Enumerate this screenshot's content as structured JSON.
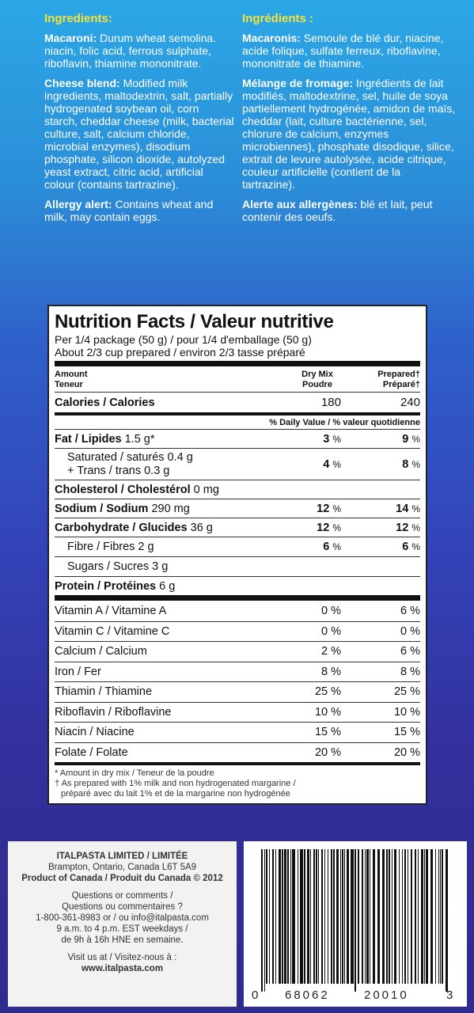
{
  "ingredients": {
    "en": {
      "title": "Ingredients:",
      "paragraphs": [
        {
          "label": "Macaroni:",
          "text": " Durum wheat semolina. niacin, folic acid, ferrous sulphate, riboflavin, thiamine mononitrate."
        },
        {
          "label": "Cheese blend:",
          "text": " Modified milk ingredients, maltodextrin, salt, partially hydrogenated soybean oil, corn starch, cheddar cheese (milk, bacterial culture, salt, calcium chloride, microbial enzymes), disodium phosphate, silicon dioxide, autolyzed yeast extract, citric acid, artificial colour (contains tartrazine)."
        },
        {
          "label": "Allergy alert:",
          "text": " Contains wheat and milk, may contain eggs."
        }
      ]
    },
    "fr": {
      "title": "Ingrédients :",
      "paragraphs": [
        {
          "label": "Macaronis:",
          "text": " Semoule de blé dur, niacine, acide folique, sulfate ferreux, riboflavine, mononitrate de thiamine."
        },
        {
          "label": "Mélange de fromage:",
          "text": " Ingrédients de lait modifiés, maltodextrine, sel, huile de soya partiellement hydrogénée, amidon de maïs, cheddar (lait, culture bactérienne, sel, chlorure de calcium, enzymes microbiennes), phosphate disodique, silice, extrait de levure autolysée, acide citrique, couleur artificielle (contient de la tartrazine)."
        },
        {
          "label": "Alerte aux allergènes:",
          "text": " blé et lait, peut contenir des oeufs."
        }
      ]
    }
  },
  "nutrition": {
    "title": "Nutrition Facts / Valeur nutritive",
    "serving1": "Per 1/4 package (50 g) / pour 1/4 d'emballage (50 g)",
    "serving2": "About 2/3 cup prepared / environ 2/3 tasse préparé",
    "hdr_amount": "Amount",
    "hdr_teneur": "Teneur",
    "hdr_dry1": "Dry Mix",
    "hdr_dry2": "Poudre",
    "hdr_prep1": "Prepared†",
    "hdr_prep2": "Préparé†",
    "calories_label": "Calories / Calories",
    "calories_dry": "180",
    "calories_prep": "240",
    "dv_label": "% Daily Value / % valeur quotidienne",
    "fat_label": "Fat / Lipides",
    "fat_amt": " 1.5 g*",
    "fat_dry": "3",
    "fat_prep": "9",
    "sat1": "Saturated / saturés 0.4 g",
    "sat2": "+ Trans / trans 0.3 g",
    "sat_dry": "4",
    "sat_prep": "8",
    "chol_label": "Cholesterol / Cholestérol",
    "chol_amt": " 0 mg",
    "sodium_label": "Sodium / Sodium",
    "sodium_amt": " 290 mg",
    "sodium_dry": "12",
    "sodium_prep": "14",
    "carb_label": "Carbohydrate / Glucides",
    "carb_amt": " 36 g",
    "carb_dry": "12",
    "carb_prep": "12",
    "fibre_label": "Fibre / Fibres 2 g",
    "fibre_dry": "6",
    "fibre_prep": "6",
    "sugars_label": "Sugars / Sucres 3 g",
    "protein_label": "Protein / Protéines",
    "protein_amt": " 6 g",
    "pct": "%",
    "vitamins": [
      {
        "label": "Vitamin A / Vitamine A",
        "dry": "0 %",
        "prep": "6 %"
      },
      {
        "label": "Vitamin C / Vitamine C",
        "dry": "0 %",
        "prep": "0 %"
      },
      {
        "label": "Calcium / Calcium",
        "dry": "2 %",
        "prep": "6 %"
      },
      {
        "label": "Iron / Fer",
        "dry": "8 %",
        "prep": "8 %"
      },
      {
        "label": "Thiamin / Thiamine",
        "dry": "25 %",
        "prep": "25 %"
      },
      {
        "label": "Riboflavin / Riboflavine",
        "dry": "10 %",
        "prep": "10 %"
      },
      {
        "label": "Niacin / Niacine",
        "dry": "15 %",
        "prep": "15 %"
      },
      {
        "label": "Folate / Folate",
        "dry": "20 %",
        "prep": "20 %"
      }
    ],
    "foot1": "* Amount in dry mix / Teneur de la poudre",
    "foot2": "† As prepared with 1% milk and non hydrogenated margarine /",
    "foot3": "préparé avec du lait 1% et de la margarine non hydrogénée"
  },
  "company": {
    "name": "ITALPASTA LIMITED / LIMITÉE",
    "address": "Brampton, Ontario, Canada L6T 5A9",
    "origin": "Product of Canada / Produit du Canada © 2012",
    "q1": "Questions or comments /",
    "q2": "Questions ou commentaires ?",
    "q3": "1-800-361-8983 or / ou info@italpasta.com",
    "q4": "9 a.m. to 4 p.m. EST weekdays /",
    "q5": "de 9h à 16h HNE en semaine.",
    "v1": "Visit us at / Visitez-nous à :",
    "v2": "www.italpasta.com"
  },
  "barcode": {
    "d0": "0",
    "left": "68062",
    "right": "20010",
    "d3": "3"
  }
}
